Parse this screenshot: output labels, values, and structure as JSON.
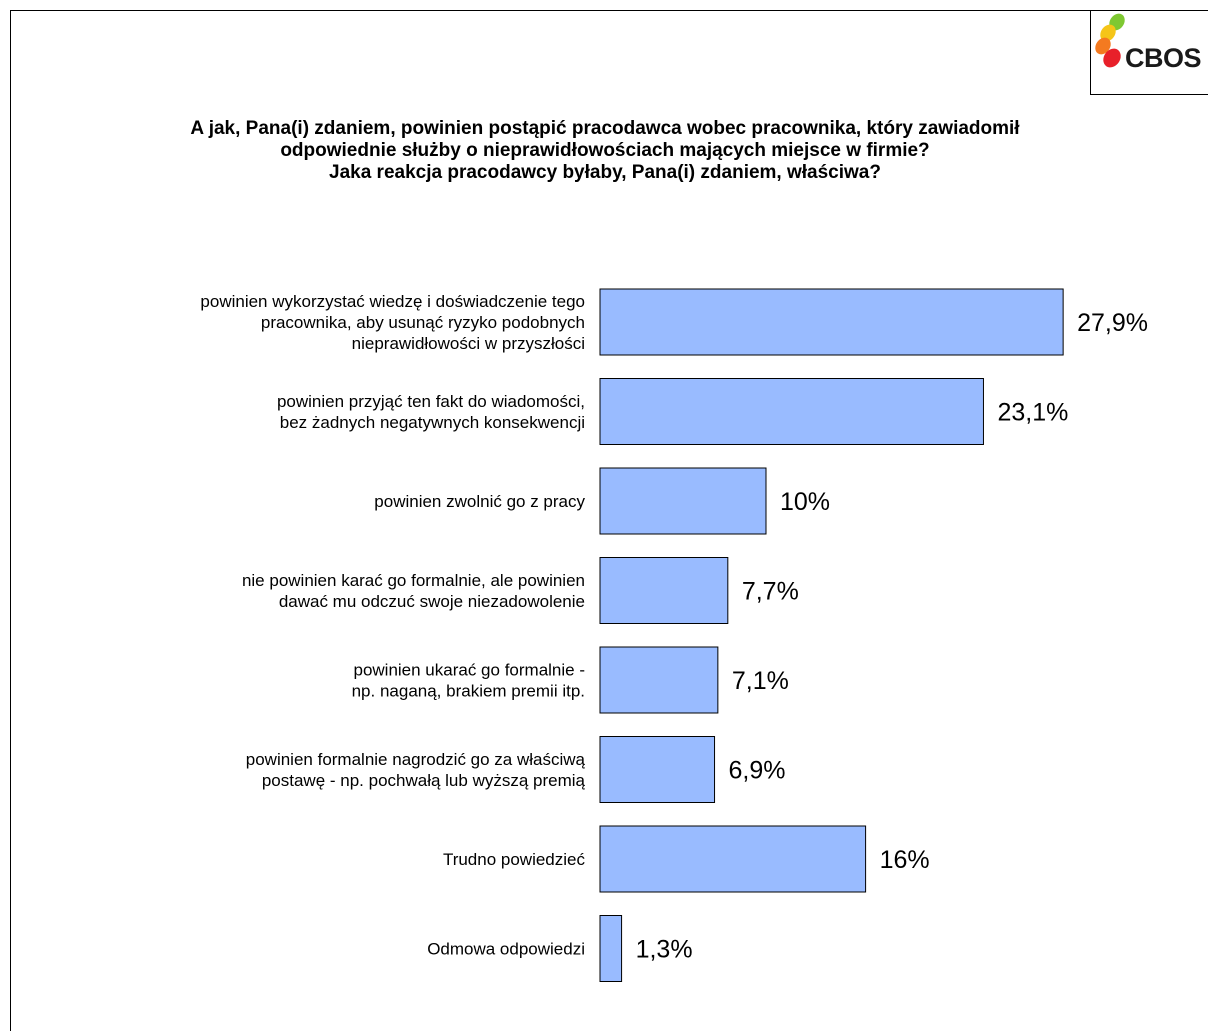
{
  "logo": {
    "text": "CBOS",
    "colors": [
      "#7ec832",
      "#f5c518",
      "#f47a20",
      "#e8202a"
    ]
  },
  "title_lines": [
    "A jak, Pana(i) zdaniem, powinien postąpić pracodawca wobec pracownika, który zawiadomił",
    "odpowiednie służby o nieprawidłowościach mających miejsce w firmie?",
    "Jaka reakcja pracodawcy byłaby, Pana(i) zdaniem, właściwa?"
  ],
  "chart_data": {
    "type": "bar",
    "orientation": "horizontal",
    "title": "A jak, Pana(i) zdaniem, powinien postąpić pracodawca wobec pracownika, który zawiadomił odpowiednie służby o nieprawidłowościach mających miejsce w firmie? Jaka reakcja pracodawcy byłaby, Pana(i) zdaniem, właściwa?",
    "categories": [
      [
        "powinien wykorzystać wiedzę i doświadczenie tego",
        "pracownika, aby usunąć ryzyko podobnych",
        "nieprawidłowości w przyszłości"
      ],
      [
        "powinien przyjąć ten fakt do wiadomości,",
        "bez żadnych negatywnych konsekwencji"
      ],
      [
        "powinien zwolnić go z pracy"
      ],
      [
        "nie powinien karać go formalnie, ale powinien",
        "dawać mu odczuć swoje niezadowolenie"
      ],
      [
        "powinien ukarać go formalnie -",
        "np. naganą, brakiem premii itp."
      ],
      [
        "powinien formalnie nagrodzić go za właściwą",
        "postawę - np. pochwałą lub wyższą premią"
      ],
      [
        "Trudno powiedzieć"
      ],
      [
        "Odmowa odpowiedzi"
      ]
    ],
    "values": [
      27.9,
      23.1,
      10,
      7.7,
      7.1,
      6.9,
      16,
      1.3
    ],
    "value_labels": [
      "27,9%",
      "23,1%",
      "10%",
      "7,7%",
      "7,1%",
      "6,9%",
      "16%",
      "1,3%"
    ],
    "unit": "%",
    "bar_color": "#99bbff",
    "xlabel": "",
    "ylabel": "",
    "grid": false,
    "legend": "none"
  }
}
